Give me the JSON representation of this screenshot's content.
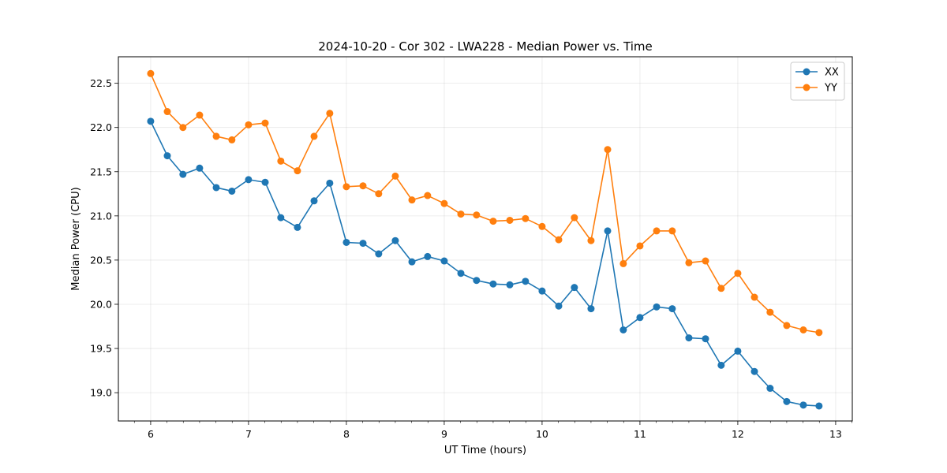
{
  "chart_data": {
    "type": "line",
    "title": "2024-10-20 - Cor 302 - LWA228 - Median Power vs. Time",
    "xlabel": "UT Time (hours)",
    "ylabel": "Median Power (CPU)",
    "xlim": [
      5.67,
      13.17
    ],
    "ylim": [
      18.68,
      22.8
    ],
    "xticks": [
      6,
      7,
      8,
      9,
      10,
      11,
      12,
      13
    ],
    "xtick_labels": [
      "6",
      "7",
      "8",
      "9",
      "10",
      "11",
      "12",
      "13"
    ],
    "yticks": [
      19.0,
      19.5,
      20.0,
      20.5,
      21.0,
      21.5,
      22.0,
      22.5
    ],
    "ytick_labels": [
      "19.0",
      "19.5",
      "20.0",
      "20.5",
      "21.0",
      "21.5",
      "22.0",
      "22.5"
    ],
    "grid": true,
    "legend_position": "top-right",
    "x": [
      6.0,
      6.17,
      6.33,
      6.5,
      6.67,
      6.83,
      7.0,
      7.17,
      7.33,
      7.5,
      7.67,
      7.83,
      8.0,
      8.17,
      8.33,
      8.5,
      8.67,
      8.83,
      9.0,
      9.17,
      9.33,
      9.5,
      9.67,
      9.83,
      10.0,
      10.17,
      10.33,
      10.5,
      10.67,
      10.83,
      11.0,
      11.17,
      11.33,
      11.5,
      11.67,
      11.83,
      12.0,
      12.17,
      12.33,
      12.5,
      12.67,
      12.83
    ],
    "series": [
      {
        "name": "XX",
        "color": "#1f77b4",
        "values": [
          22.07,
          21.68,
          21.47,
          21.54,
          21.32,
          21.28,
          21.41,
          21.38,
          20.98,
          20.87,
          21.17,
          21.37,
          20.7,
          20.69,
          20.57,
          20.72,
          20.48,
          20.54,
          20.49,
          20.35,
          20.27,
          20.23,
          20.22,
          20.26,
          20.15,
          19.98,
          20.19,
          19.95,
          20.83,
          19.71,
          19.85,
          19.97,
          19.95,
          19.62,
          19.61,
          19.31,
          19.47,
          19.24,
          19.05,
          18.9,
          18.86,
          18.85
        ]
      },
      {
        "name": "YY",
        "color": "#ff7f0e",
        "values": [
          22.61,
          22.18,
          22.0,
          22.14,
          21.9,
          21.86,
          22.03,
          22.05,
          21.62,
          21.51,
          21.9,
          22.16,
          21.33,
          21.34,
          21.25,
          21.45,
          21.18,
          21.23,
          21.14,
          21.02,
          21.01,
          20.94,
          20.95,
          20.97,
          20.88,
          20.73,
          20.98,
          20.72,
          21.75,
          20.46,
          20.66,
          20.83,
          20.83,
          20.47,
          20.49,
          20.18,
          20.35,
          20.08,
          19.91,
          19.76,
          19.71,
          19.68
        ]
      }
    ]
  }
}
